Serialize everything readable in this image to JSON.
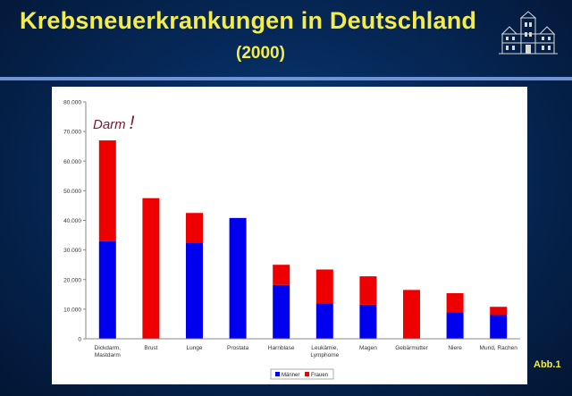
{
  "header": {
    "title": "Krebsneuerkrankungen in Deutschland",
    "subtitle": "(2000)"
  },
  "figure_label": "Abb.1",
  "icons": {
    "logo": "building-logo-icon"
  },
  "colors": {
    "title": "#f4ec4a",
    "men": "#0000ee",
    "women": "#ee0000"
  },
  "chart_data": {
    "type": "bar",
    "stacked": true,
    "annotation": "Darm",
    "annotation_mark": "!",
    "ylim": [
      0,
      80000
    ],
    "yticks": [
      0,
      10000,
      20000,
      30000,
      40000,
      50000,
      60000,
      70000,
      80000
    ],
    "ytick_labels": [
      "0",
      "10.000",
      "20.000",
      "30.000",
      "40.000",
      "50.000",
      "60.000",
      "70.000",
      "80.000"
    ],
    "categories": [
      [
        "Dickdarm,",
        "Mastdarm"
      ],
      [
        "Brust"
      ],
      [
        "Lunge"
      ],
      [
        "Prostata"
      ],
      [
        "Harnblase"
      ],
      [
        "Leukämie,",
        "Lymphome"
      ],
      [
        "Magen"
      ],
      [
        "Gebärmutter"
      ],
      [
        "Niere"
      ],
      [
        "Mund, Rachen"
      ]
    ],
    "series": [
      {
        "name": "Männer",
        "color": "#0000ee",
        "values": [
          33000,
          0,
          32300,
          40800,
          18200,
          12000,
          11500,
          0,
          9000,
          8000
        ]
      },
      {
        "name": "Frauen",
        "color": "#ee0000",
        "values": [
          34000,
          47500,
          10200,
          0,
          6800,
          11400,
          9600,
          16500,
          6400,
          2800
        ]
      }
    ],
    "legend_position": "bottom"
  }
}
